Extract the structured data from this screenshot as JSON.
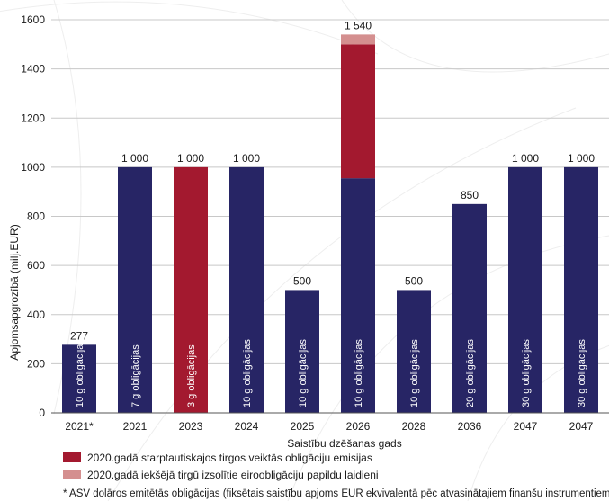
{
  "chart_data": {
    "type": "bar",
    "categories": [
      "2021*",
      "2021",
      "2023",
      "2024",
      "2025",
      "2026",
      "2028",
      "2036",
      "2047",
      "2047"
    ],
    "series": [
      {
        "color": "#272565",
        "values": [
          277,
          1000,
          0,
          1000,
          500,
          955,
          500,
          850,
          1000,
          1000
        ]
      },
      {
        "name": "2020.gadā starptautiskajos tirgos veiktās obligāciju emisijas",
        "color": "#a3192f",
        "values": [
          0,
          0,
          1000,
          0,
          0,
          545,
          0,
          0,
          0,
          0
        ]
      },
      {
        "name": "2020.gadā iekšējā tirgū izsolītie eiroobligāciju papildu laidieni",
        "color": "#d48f8f",
        "values": [
          0,
          0,
          0,
          0,
          0,
          40,
          0,
          0,
          0,
          0
        ]
      }
    ],
    "data_labels": [
      "277",
      "1 000",
      "1 000",
      "1 000",
      "500",
      "1 540",
      "500",
      "850",
      "1 000",
      "1 000"
    ],
    "bar_labels": [
      "10 g obligācijas",
      "7 g obligācijas",
      "3 g obligācijas",
      "10 g obligācijas",
      "10 g obligācijas",
      "10 g obligācijas",
      "10 g obligācijas",
      "20 g obligācijas",
      "30 g obligācijas",
      "30 g obligācijas"
    ],
    "xlabel": "Saistību dzēšanas gads",
    "ylabel": "Apjomsapgrozībā (milj.EUR)",
    "ylim": [
      0,
      1600
    ],
    "yticks": [
      0,
      200,
      400,
      600,
      800,
      1000,
      1200,
      1400,
      1600
    ],
    "grid": true,
    "legend_position": "bottom",
    "footnote": "* ASV dolāros emitētās obligācijas (fiksētais saistību apjoms EUR ekvivalentā  pēc atvasinātajiem finanšu instrumentiem)"
  }
}
